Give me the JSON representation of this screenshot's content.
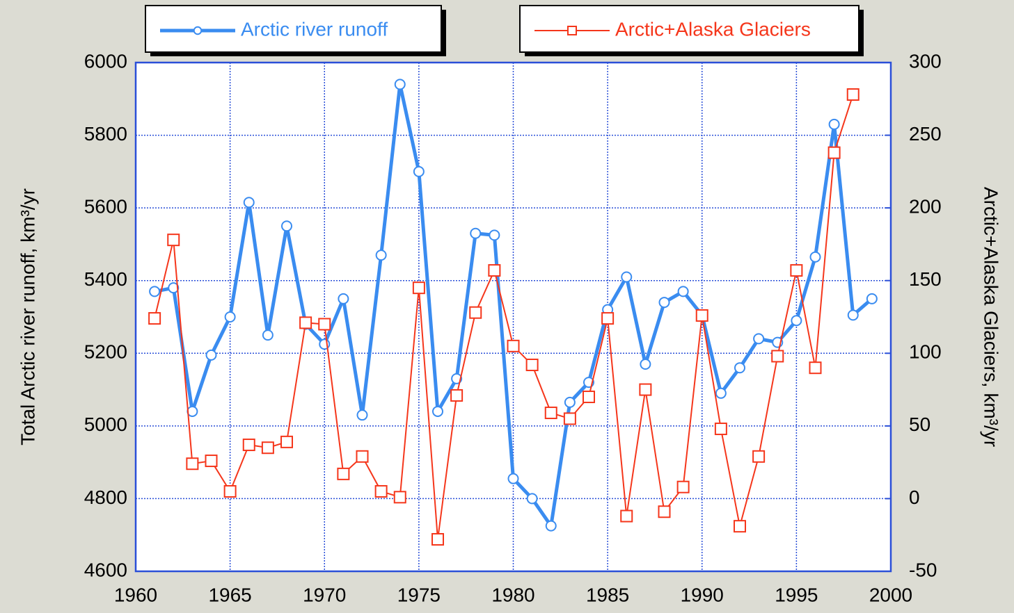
{
  "chart_data": {
    "type": "line",
    "x": [
      1961,
      1962,
      1963,
      1964,
      1965,
      1966,
      1967,
      1968,
      1969,
      1970,
      1971,
      1972,
      1973,
      1974,
      1975,
      1976,
      1977,
      1978,
      1979,
      1980,
      1981,
      1982,
      1983,
      1984,
      1985,
      1986,
      1987,
      1988,
      1989,
      1990,
      1991,
      1992,
      1993,
      1994,
      1995,
      1996,
      1997,
      1998,
      1999
    ],
    "series": [
      {
        "name": "Arctic river runoff",
        "color": "#3a8cf0",
        "marker": "circle",
        "values": [
          5370,
          5380,
          5040,
          5195,
          5300,
          5615,
          5250,
          5550,
          5280,
          5225,
          5350,
          5030,
          5470,
          5940,
          5700,
          5040,
          5130,
          5530,
          5525,
          4855,
          4800,
          4725,
          5065,
          5120,
          5320,
          5410,
          5170,
          5340,
          5370,
          5305,
          5090,
          5160,
          5240,
          5230,
          5290,
          5465,
          5830,
          5305,
          5350
        ]
      },
      {
        "name": "Arctic+Alaska Glaciers",
        "color": "#f5361b",
        "marker": "square",
        "axis": "y2",
        "values": [
          124,
          178,
          24,
          26,
          5,
          37,
          35,
          39,
          121,
          120,
          17,
          29,
          5,
          1,
          145,
          -28,
          71,
          128,
          157,
          105,
          92,
          59,
          55,
          70,
          124,
          -12,
          75,
          -9,
          8,
          126,
          48,
          -19,
          29,
          98,
          157,
          90,
          238,
          278,
          null
        ]
      }
    ],
    "ylabel": "Total Arctic river runoff, km³/yr",
    "y2label": "Arctic+Alaska Glaciers, km³/yr",
    "xlim": [
      1960,
      2000
    ],
    "xticks": [
      1960,
      1965,
      1970,
      1975,
      1980,
      1985,
      1990,
      1995,
      2000
    ],
    "ylim": [
      4600,
      6000
    ],
    "yticks": [
      4600,
      4800,
      5000,
      5200,
      5400,
      5600,
      5800,
      6000
    ],
    "y2lim": [
      -50,
      300
    ],
    "y2ticks": [
      -50,
      0,
      50,
      100,
      150,
      200,
      250,
      300
    ],
    "grid": true
  }
}
